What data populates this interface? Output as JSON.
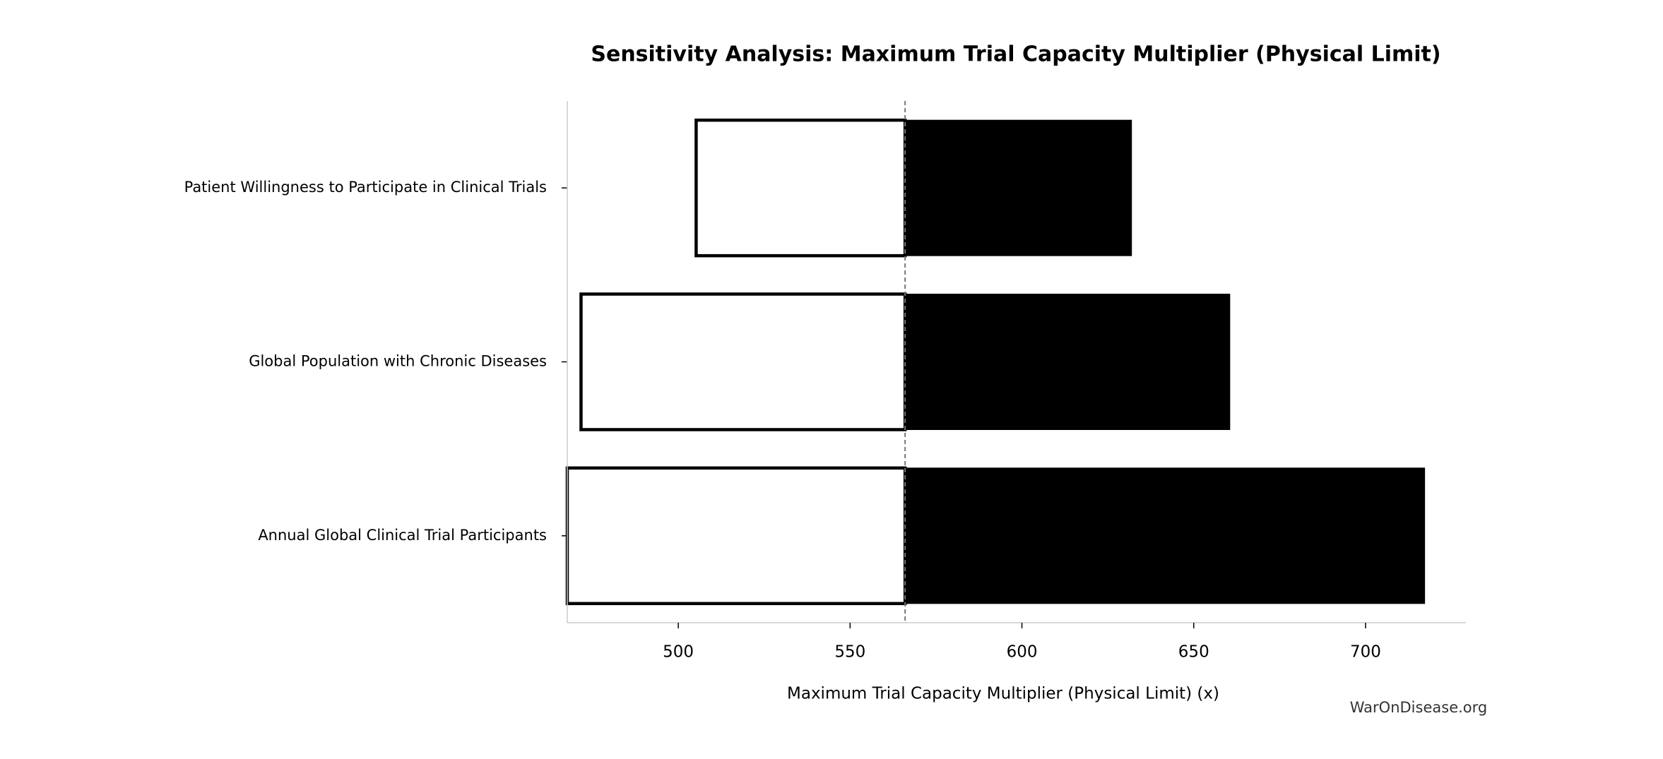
{
  "chart_data": {
    "type": "tornado",
    "title": "Sensitivity Analysis: Maximum Trial Capacity Multiplier (Physical Limit)",
    "x_label": "Maximum Trial Capacity Multiplier (Physical Limit) (x)",
    "watermark": "WarOnDisease.org",
    "categories": [
      "Patient Willingness to Participate in Clinical Trials",
      "Global Population with Chronic Diseases",
      "Annual Global Clinical Trial Participants"
    ],
    "baseline": 566,
    "low_values": [
      505.2,
      471.7,
      467.7
    ],
    "high_values": [
      631.9,
      660.5,
      717.2
    ],
    "low_color": "#ffffff",
    "high_color": "#000000",
    "xlim": [
      467.7,
      729.2
    ],
    "xticks": [
      500,
      550,
      600,
      650,
      700
    ]
  }
}
